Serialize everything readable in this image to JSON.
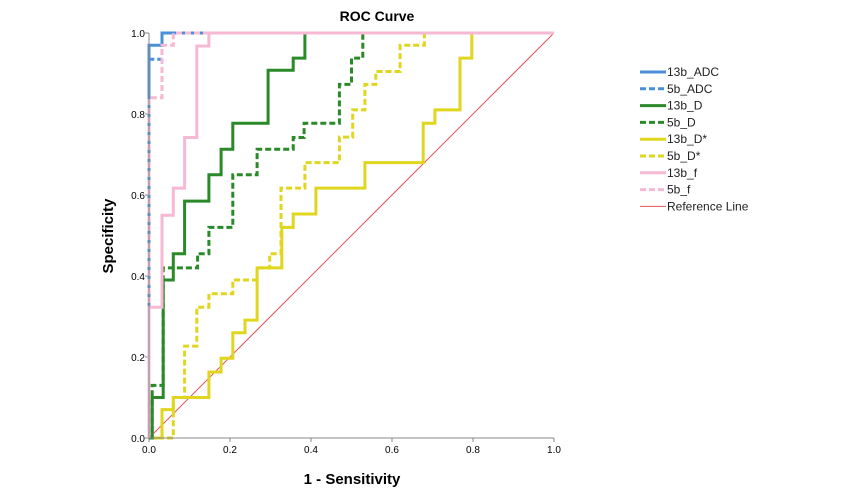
{
  "chart_data": {
    "type": "line",
    "title": "ROC Curve",
    "xlabel": "1 - Sensitivity",
    "ylabel": "Specificity",
    "xlim": [
      0,
      1
    ],
    "ylim": [
      0,
      1
    ],
    "xticks": [
      "0.0",
      "0.2",
      "0.4",
      "0.6",
      "0.8",
      "1.0"
    ],
    "yticks": [
      "0.0",
      "0.2",
      "0.4",
      "0.6",
      "0.8",
      "1.0"
    ],
    "grid": false,
    "legend_position": "right",
    "series": [
      {
        "name": "13b_ADC",
        "color": "#4a90d9",
        "dashed": false,
        "points": [
          [
            0,
            0
          ],
          [
            0,
            0.97
          ],
          [
            0.032,
            0.97
          ],
          [
            0.032,
            1
          ],
          [
            1,
            1
          ]
        ]
      },
      {
        "name": "5b_ADC",
        "color": "#4a90d9",
        "dashed": true,
        "points": [
          [
            0,
            0
          ],
          [
            0,
            0.935
          ],
          [
            0.032,
            0.935
          ],
          [
            0.032,
            1
          ],
          [
            1,
            1
          ]
        ]
      },
      {
        "name": "13b_D",
        "color": "#2a8a2a",
        "dashed": false,
        "points": [
          [
            0,
            0
          ],
          [
            0.008,
            0
          ],
          [
            0.008,
            0.1
          ],
          [
            0.035,
            0.1
          ],
          [
            0.035,
            0.39
          ],
          [
            0.06,
            0.39
          ],
          [
            0.06,
            0.455
          ],
          [
            0.088,
            0.455
          ],
          [
            0.088,
            0.585
          ],
          [
            0.148,
            0.585
          ],
          [
            0.148,
            0.65
          ],
          [
            0.178,
            0.65
          ],
          [
            0.178,
            0.713
          ],
          [
            0.207,
            0.713
          ],
          [
            0.207,
            0.777
          ],
          [
            0.294,
            0.777
          ],
          [
            0.294,
            0.908
          ],
          [
            0.356,
            0.908
          ],
          [
            0.356,
            0.938
          ],
          [
            0.385,
            0.938
          ],
          [
            0.385,
            1
          ],
          [
            1,
            1
          ]
        ]
      },
      {
        "name": "5b_D",
        "color": "#2a8a2a",
        "dashed": true,
        "points": [
          [
            0,
            0
          ],
          [
            0.008,
            0
          ],
          [
            0.008,
            0.13
          ],
          [
            0.035,
            0.13
          ],
          [
            0.035,
            0.42
          ],
          [
            0.12,
            0.42
          ],
          [
            0.12,
            0.455
          ],
          [
            0.148,
            0.455
          ],
          [
            0.148,
            0.52
          ],
          [
            0.207,
            0.52
          ],
          [
            0.207,
            0.65
          ],
          [
            0.267,
            0.65
          ],
          [
            0.267,
            0.713
          ],
          [
            0.356,
            0.713
          ],
          [
            0.356,
            0.742
          ],
          [
            0.383,
            0.742
          ],
          [
            0.383,
            0.777
          ],
          [
            0.47,
            0.777
          ],
          [
            0.47,
            0.873
          ],
          [
            0.5,
            0.873
          ],
          [
            0.5,
            0.938
          ],
          [
            0.528,
            0.938
          ],
          [
            0.528,
            1
          ],
          [
            1,
            1
          ]
        ]
      },
      {
        "name": "13b_D*",
        "color": "#e0d61e",
        "dashed": false,
        "points": [
          [
            0,
            0
          ],
          [
            0.032,
            0
          ],
          [
            0.032,
            0.07
          ],
          [
            0.06,
            0.07
          ],
          [
            0.06,
            0.1
          ],
          [
            0.148,
            0.1
          ],
          [
            0.148,
            0.163
          ],
          [
            0.178,
            0.163
          ],
          [
            0.178,
            0.197
          ],
          [
            0.207,
            0.197
          ],
          [
            0.207,
            0.26
          ],
          [
            0.237,
            0.26
          ],
          [
            0.237,
            0.291
          ],
          [
            0.267,
            0.291
          ],
          [
            0.267,
            0.42
          ],
          [
            0.328,
            0.42
          ],
          [
            0.328,
            0.52
          ],
          [
            0.356,
            0.52
          ],
          [
            0.356,
            0.553
          ],
          [
            0.412,
            0.553
          ],
          [
            0.412,
            0.617
          ],
          [
            0.533,
            0.617
          ],
          [
            0.533,
            0.68
          ],
          [
            0.677,
            0.68
          ],
          [
            0.677,
            0.777
          ],
          [
            0.706,
            0.777
          ],
          [
            0.706,
            0.81
          ],
          [
            0.768,
            0.81
          ],
          [
            0.768,
            0.938
          ],
          [
            0.797,
            0.938
          ],
          [
            0.797,
            1
          ],
          [
            1,
            1
          ]
        ]
      },
      {
        "name": "5b_D*",
        "color": "#e0d61e",
        "dashed": true,
        "points": [
          [
            0,
            0
          ],
          [
            0.06,
            0
          ],
          [
            0.06,
            0.1
          ],
          [
            0.088,
            0.1
          ],
          [
            0.088,
            0.227
          ],
          [
            0.118,
            0.227
          ],
          [
            0.118,
            0.323
          ],
          [
            0.148,
            0.323
          ],
          [
            0.148,
            0.356
          ],
          [
            0.207,
            0.356
          ],
          [
            0.207,
            0.39
          ],
          [
            0.267,
            0.39
          ],
          [
            0.267,
            0.42
          ],
          [
            0.298,
            0.42
          ],
          [
            0.298,
            0.455
          ],
          [
            0.326,
            0.455
          ],
          [
            0.326,
            0.617
          ],
          [
            0.385,
            0.617
          ],
          [
            0.385,
            0.68
          ],
          [
            0.47,
            0.68
          ],
          [
            0.47,
            0.743
          ],
          [
            0.503,
            0.743
          ],
          [
            0.503,
            0.81
          ],
          [
            0.533,
            0.81
          ],
          [
            0.533,
            0.873
          ],
          [
            0.56,
            0.873
          ],
          [
            0.56,
            0.905
          ],
          [
            0.62,
            0.905
          ],
          [
            0.62,
            0.97
          ],
          [
            0.68,
            0.97
          ],
          [
            0.68,
            1
          ],
          [
            1,
            1
          ]
        ]
      },
      {
        "name": "13b_f",
        "color": "#f7b8d4",
        "dashed": false,
        "points": [
          [
            0,
            0
          ],
          [
            0,
            0.323
          ],
          [
            0.032,
            0.323
          ],
          [
            0.032,
            0.55
          ],
          [
            0.06,
            0.55
          ],
          [
            0.06,
            0.617
          ],
          [
            0.088,
            0.617
          ],
          [
            0.088,
            0.742
          ],
          [
            0.118,
            0.742
          ],
          [
            0.118,
            0.968
          ],
          [
            0.148,
            0.968
          ],
          [
            0.148,
            1
          ],
          [
            1,
            1
          ]
        ]
      },
      {
        "name": "5b_f",
        "color": "#f7b8d4",
        "dashed": true,
        "points": [
          [
            0,
            0
          ],
          [
            0,
            0.84
          ],
          [
            0.032,
            0.84
          ],
          [
            0.032,
            0.97
          ],
          [
            0.06,
            0.97
          ],
          [
            0.06,
            1
          ],
          [
            1,
            1
          ]
        ]
      },
      {
        "name": "Reference Line",
        "color": "#e0555a",
        "dashed": false,
        "thin": true,
        "points": [
          [
            0,
            0
          ],
          [
            1,
            1
          ]
        ]
      }
    ]
  }
}
